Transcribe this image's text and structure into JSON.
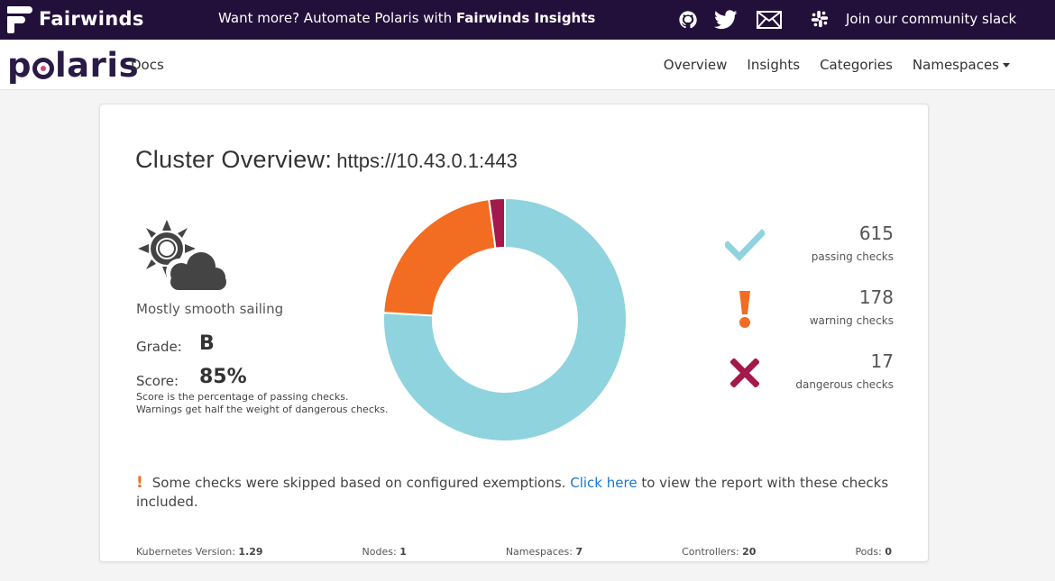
{
  "topbar": {
    "brand": "Fairwinds",
    "promo_prefix": "Want more? Automate Polaris with",
    "promo_strong": "Fairwinds Insights",
    "icons": [
      "github-icon",
      "twitter-icon",
      "mail-icon"
    ],
    "slack_label": "Join our community slack"
  },
  "navbar": {
    "logo": "polaris",
    "docs": "Docs",
    "links": [
      "Overview",
      "Insights",
      "Categories",
      "Namespaces"
    ]
  },
  "overview": {
    "title": "Cluster Overview:",
    "cluster_url": "https://10.43.0.1:443",
    "weather_icon": "partly-cloudy-icon",
    "weather_text": "Mostly smooth sailing",
    "grade_label": "Grade:",
    "grade": "B",
    "score_label": "Score:",
    "score": "85%",
    "score_note": "Score is the percentage of passing checks. Warnings get half the weight of dangerous checks."
  },
  "chart_data": {
    "type": "pie",
    "categories": [
      "passing checks",
      "warning checks",
      "dangerous checks"
    ],
    "values": [
      615,
      178,
      17
    ],
    "colors": [
      "#8fd3de",
      "#f26c22",
      "#a3194b"
    ]
  },
  "checks": [
    {
      "count": "615",
      "label": "passing checks",
      "icon": "checkmark-icon",
      "color": "#8fd3de"
    },
    {
      "count": "178",
      "label": "warning checks",
      "icon": "exclamation-icon",
      "color": "#f26c22"
    },
    {
      "count": "17",
      "label": "dangerous checks",
      "icon": "x-icon",
      "color": "#a3194b"
    }
  ],
  "exemptions": {
    "text_before": "Some checks were skipped based on configured exemptions.",
    "link": "Click here",
    "text_after": "to view the report with these checks included."
  },
  "footer": [
    {
      "label": "Kubernetes Version:",
      "value": "1.29"
    },
    {
      "label": "Nodes:",
      "value": "1"
    },
    {
      "label": "Namespaces:",
      "value": "7"
    },
    {
      "label": "Controllers:",
      "value": "20"
    },
    {
      "label": "Pods:",
      "value": "0"
    }
  ]
}
